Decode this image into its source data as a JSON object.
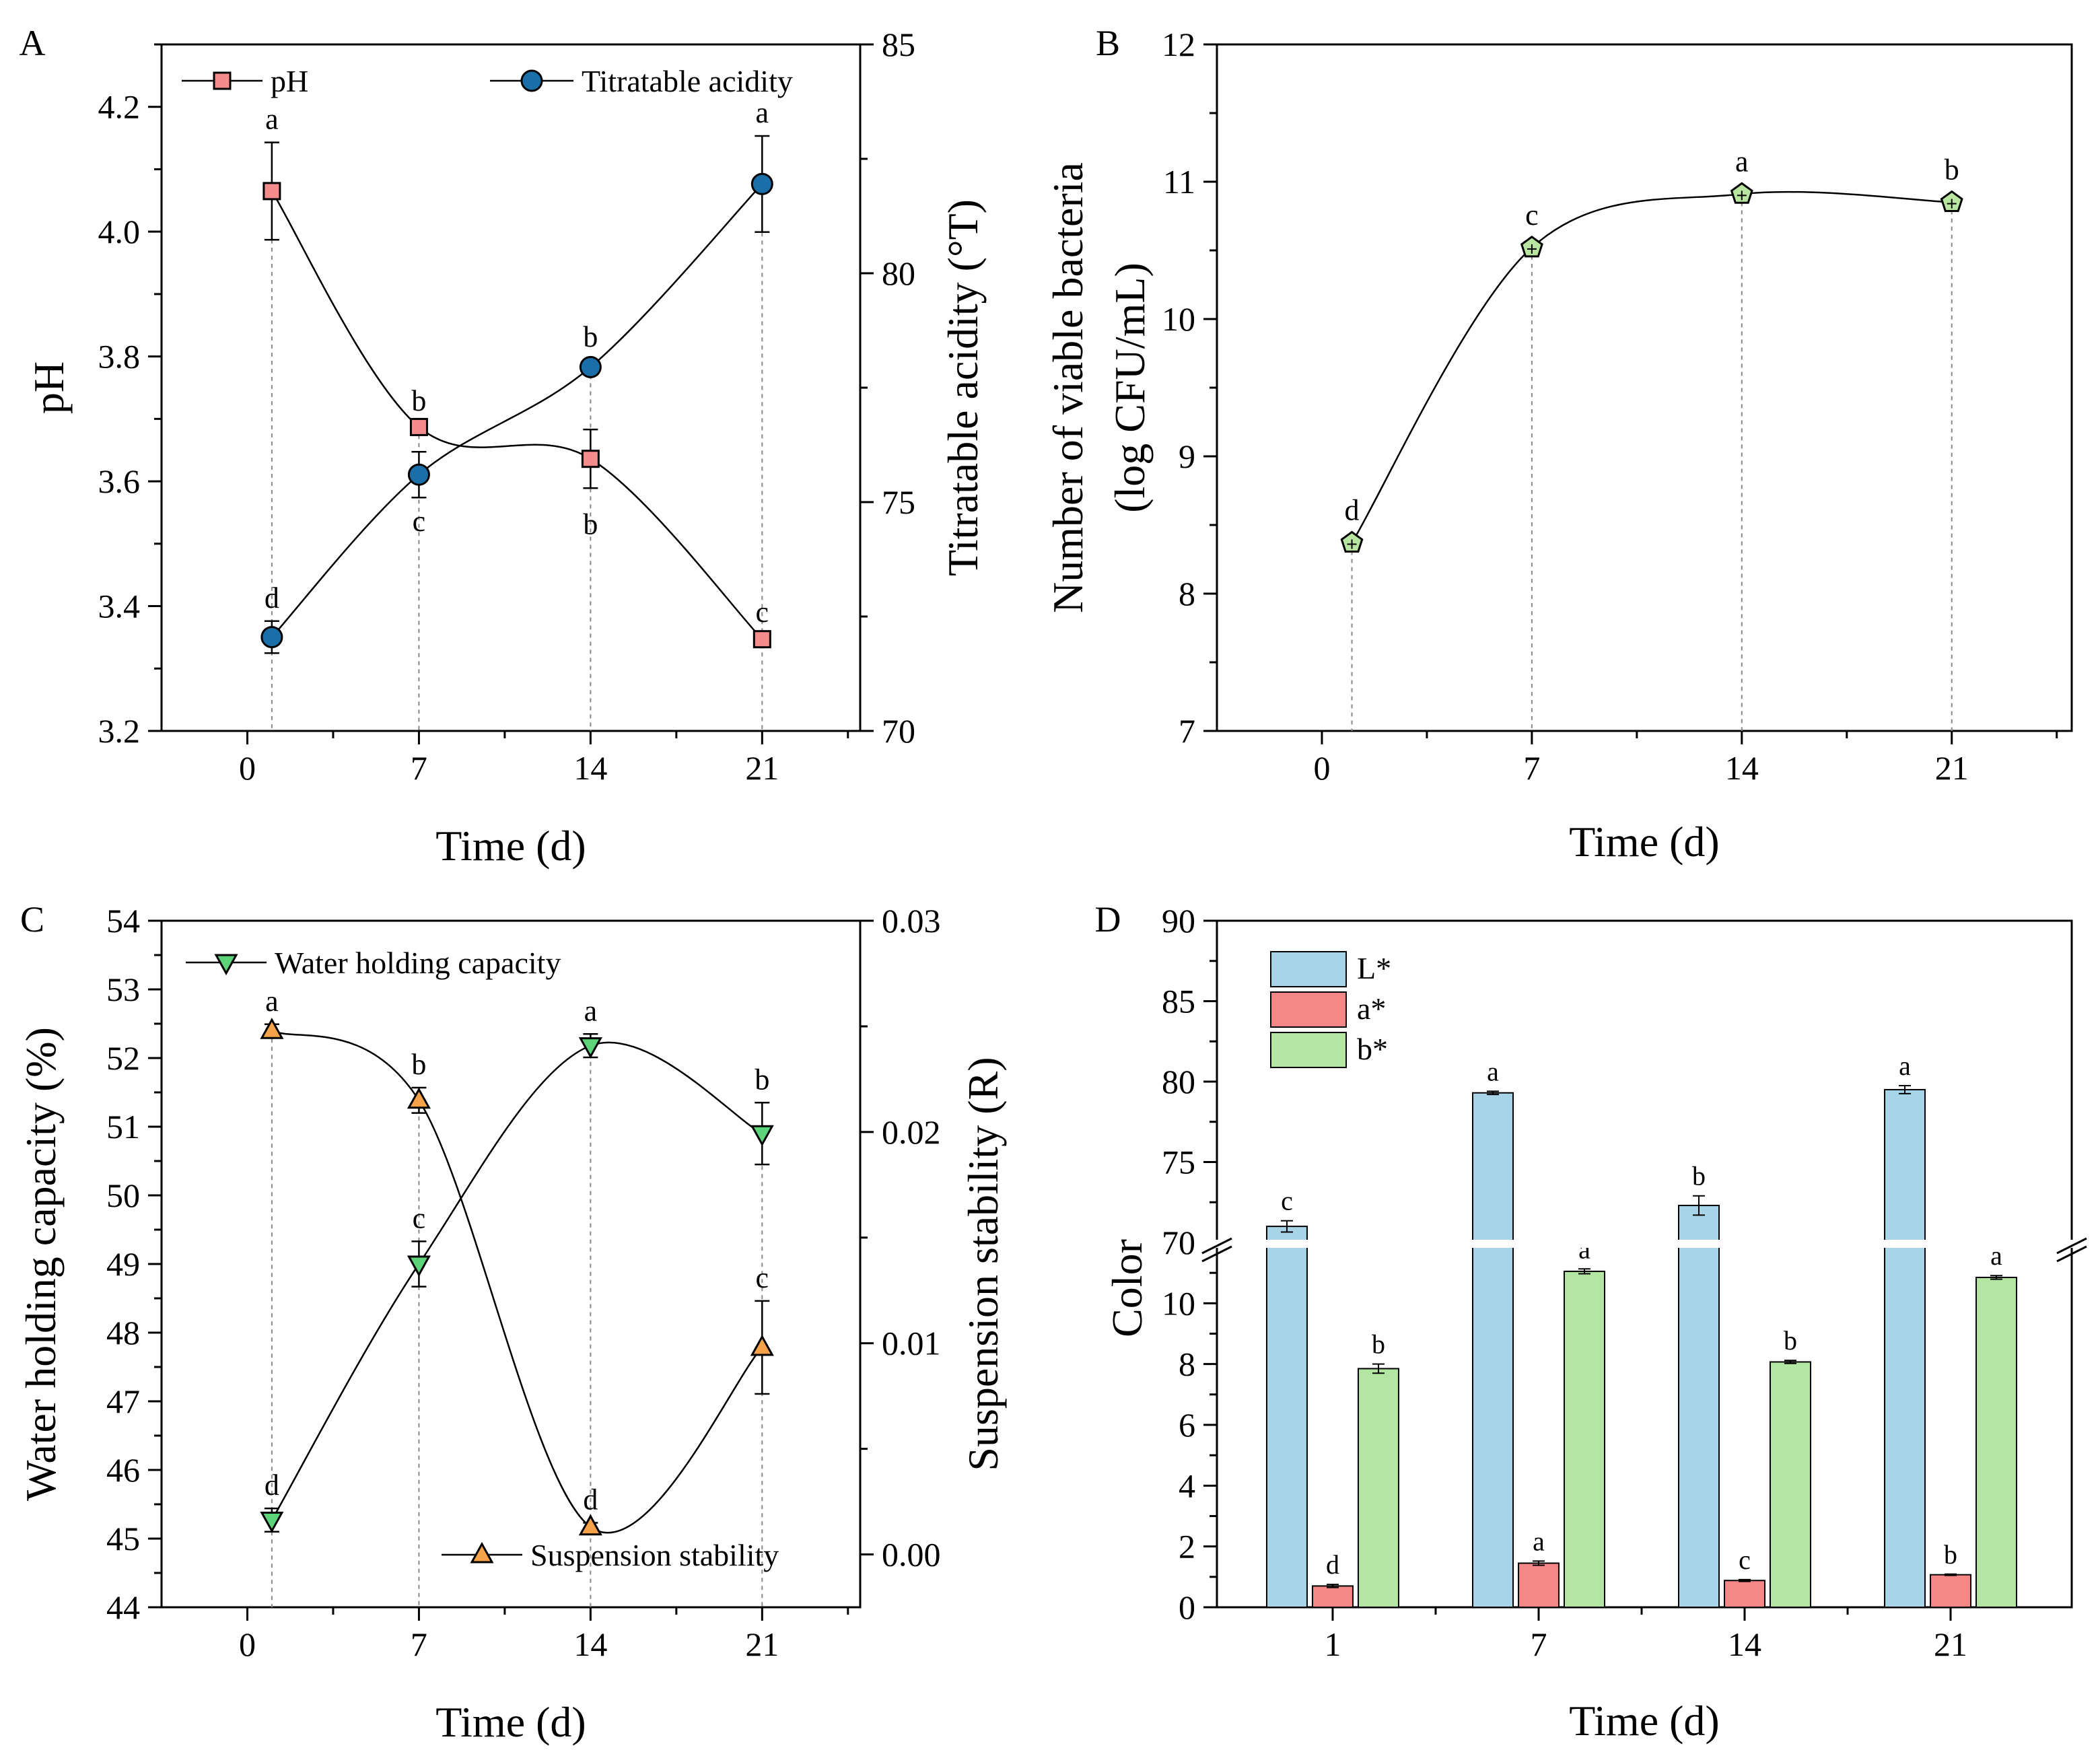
{
  "chart_data": [
    {
      "panel": "A",
      "type": "line",
      "xlabel": "Time (d)",
      "xticks": [
        "0",
        "7",
        "14",
        "21"
      ],
      "xlim": [
        -3.5,
        25
      ],
      "ylabel": "pH",
      "ylim": [
        3.2,
        4.3
      ],
      "yticks": [
        3.2,
        3.4,
        3.6,
        3.8,
        4.0,
        4.2
      ],
      "y2label": "Titratable acidity (°T)",
      "y2lim": [
        70,
        85
      ],
      "y2ticks": [
        70,
        75,
        80,
        85
      ],
      "series": [
        {
          "name": "pH",
          "axis": "left",
          "marker": "square",
          "color": "#f58c8c",
          "x": [
            1,
            7,
            14,
            21
          ],
          "values": [
            4.065,
            3.687,
            3.636,
            3.347
          ],
          "errors": [
            0.078,
            0.005,
            0.047,
            0.006
          ],
          "letters": [
            "a",
            "b",
            "b",
            "c"
          ]
        },
        {
          "name": "Titratable acidity",
          "axis": "right",
          "marker": "circle",
          "color": "#1b6fa8",
          "x": [
            1,
            7,
            14,
            21
          ],
          "values": [
            72.05,
            75.6,
            77.95,
            81.95
          ],
          "errors": [
            0.35,
            0.5,
            0.15,
            1.05
          ],
          "letters": [
            "d",
            "c",
            "b",
            "a"
          ]
        }
      ]
    },
    {
      "panel": "B",
      "type": "line",
      "xlabel": "Time (d)",
      "xticks": [
        "0",
        "7",
        "14",
        "21"
      ],
      "xlim": [
        -3.5,
        25
      ],
      "ylabel": "Number of viable bacteria",
      "ylabel2": "(log CFU/mL)",
      "ylim": [
        7,
        12
      ],
      "yticks": [
        7,
        8,
        9,
        10,
        11,
        12
      ],
      "series": [
        {
          "name": "Viable bacteria",
          "marker": "pentagon",
          "color": "#b8e6a0",
          "x": [
            1,
            7,
            14,
            21
          ],
          "values": [
            8.37,
            10.52,
            10.91,
            10.85
          ],
          "errors": [
            0.03,
            0.03,
            0.02,
            0.02
          ],
          "letters": [
            "d",
            "c",
            "a",
            "b"
          ]
        }
      ]
    },
    {
      "panel": "C",
      "type": "line",
      "xlabel": "Time (d)",
      "xticks": [
        "0",
        "7",
        "14",
        "21"
      ],
      "xlim": [
        -3.5,
        25
      ],
      "ylabel": "Water holding capacity (%)",
      "ylim": [
        44,
        54
      ],
      "yticks": [
        44,
        45,
        46,
        47,
        48,
        49,
        50,
        51,
        52,
        53,
        54
      ],
      "y2label": "Suspension stability (R)",
      "y2lim": [
        -0.0025,
        0.03
      ],
      "y2ticks": [
        "0.00",
        "0.01",
        "0.02",
        "0.03"
      ],
      "series": [
        {
          "name": "Water holding capacity",
          "axis": "left",
          "marker": "triangle-down",
          "color": "#5dd47a",
          "x": [
            1,
            7,
            14,
            21
          ],
          "values": [
            45.27,
            49.0,
            52.18,
            50.9
          ],
          "errors": [
            0.17,
            0.33,
            0.17,
            0.45
          ],
          "letters": [
            "d",
            "c",
            "a",
            "b"
          ]
        },
        {
          "name": "Suspension stability",
          "axis": "right",
          "marker": "triangle-up",
          "color": "#f5a24a",
          "x": [
            1,
            7,
            14,
            21
          ],
          "values": [
            0.0248,
            0.0215,
            0.0013,
            0.0098
          ],
          "errors": [
            0.0003,
            0.0006,
            0.0002,
            0.0022
          ],
          "letters": [
            "a",
            "b",
            "d",
            "c"
          ]
        }
      ]
    },
    {
      "panel": "D",
      "type": "bar",
      "xlabel": "Time (d)",
      "categories": [
        "1",
        "7",
        "14",
        "21"
      ],
      "ylabel": "Color",
      "axis_break": {
        "lower": [
          0,
          12
        ],
        "upper": [
          70,
          90
        ]
      },
      "yticks_lower": [
        0,
        2,
        4,
        6,
        8,
        10
      ],
      "yticks_upper": [
        70,
        75,
        80,
        85,
        90
      ],
      "legend": "top-left",
      "series": [
        {
          "name": "L*",
          "color": "#a8d4e8",
          "values": [
            71.0,
            79.3,
            72.3,
            79.5
          ],
          "errors": [
            0.35,
            0.1,
            0.6,
            0.25
          ],
          "letters": [
            "c",
            "a",
            "b",
            "a"
          ]
        },
        {
          "name": "a*",
          "color": "#f58787",
          "values": [
            0.7,
            1.45,
            0.88,
            1.07
          ],
          "errors": [
            0.05,
            0.07,
            0.03,
            0.02
          ],
          "letters": [
            "d",
            "a",
            "c",
            "b"
          ]
        },
        {
          "name": "b*",
          "color": "#b3e6a3",
          "values": [
            7.85,
            11.05,
            8.07,
            10.85
          ],
          "errors": [
            0.15,
            0.08,
            0.05,
            0.06
          ],
          "letters": [
            "b",
            "a",
            "b",
            "a"
          ]
        }
      ]
    }
  ]
}
